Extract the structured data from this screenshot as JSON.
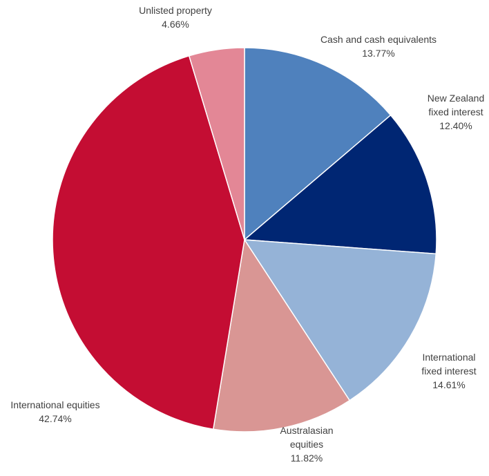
{
  "chart_data": {
    "type": "pie",
    "title": "",
    "start_angle_deg": 0,
    "direction": "clockwise",
    "slices": [
      {
        "label_lines": [
          "Cash and cash equivalents"
        ],
        "value_label": "13.77%",
        "value": 13.77,
        "color": "#4f81bd"
      },
      {
        "label_lines": [
          "New Zealand",
          "fixed interest"
        ],
        "value_label": "12.40%",
        "value": 12.4,
        "color": "#002673"
      },
      {
        "label_lines": [
          "International",
          "fixed interest"
        ],
        "value_label": "14.61%",
        "value": 14.61,
        "color": "#95b3d7"
      },
      {
        "label_lines": [
          "Australasian",
          "equities"
        ],
        "value_label": "11.82%",
        "value": 11.82,
        "color": "#d99694"
      },
      {
        "label_lines": [
          "International equities"
        ],
        "value_label": "42.74%",
        "value": 42.74,
        "color": "#c40d33"
      },
      {
        "label_lines": [
          "Unlisted property"
        ],
        "value_label": "4.66%",
        "value": 4.66,
        "color": "#e38796"
      }
    ]
  }
}
